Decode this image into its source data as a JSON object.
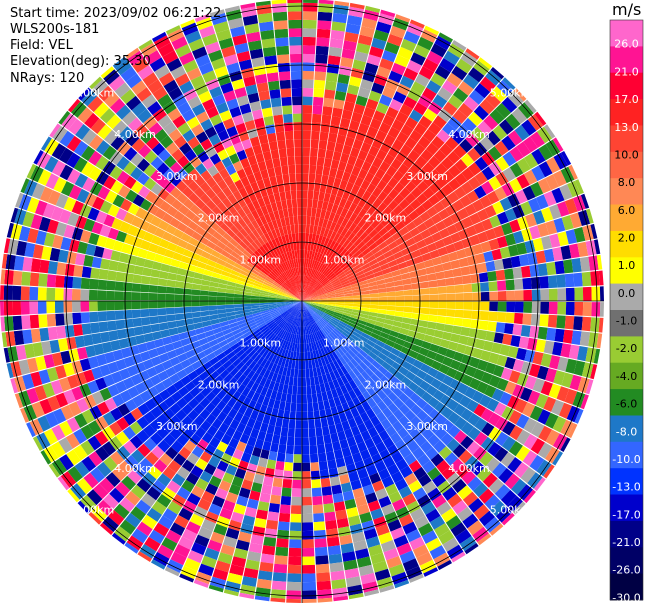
{
  "info": {
    "start_time": "Start time: 2023/09/02 06:21:22",
    "instrument": "WLS200s-181",
    "field": "Field: VEL",
    "elevation": "Elevation(deg): 35.30",
    "nrays": "NRays: 120"
  },
  "plot": {
    "ring_labels": [
      "1.00km",
      "2.00km",
      "3.00km",
      "4.00km",
      "5.00km"
    ],
    "range_max_km": 5.2,
    "nrays": 120
  },
  "colorbar": {
    "unit": "m/s",
    "ticks": [
      "26.0",
      "21.0",
      "17.0",
      "13.0",
      "10.0",
      "8.0",
      "6.0",
      "2.0",
      "1.0",
      "0.0",
      "-1.0",
      "-2.0",
      "-4.0",
      "-6.0",
      "-8.0",
      "-10.0",
      "-13.0",
      "-17.0",
      "-21.0",
      "-26.0",
      "-30.0"
    ],
    "colors": [
      "#ff66cc",
      "#ff1493",
      "#ff0033",
      "#ff2222",
      "#ff4433",
      "#ff6644",
      "#ff8855",
      "#ffaa33",
      "#ffdd00",
      "#ffff00",
      "#aaaaaa",
      "#707070",
      "#99cc33",
      "#66aa22",
      "#228b22",
      "#1e78c8",
      "#3366ff",
      "#0033ff",
      "#0000cc",
      "#000088",
      "#000066",
      "#000044"
    ]
  }
}
